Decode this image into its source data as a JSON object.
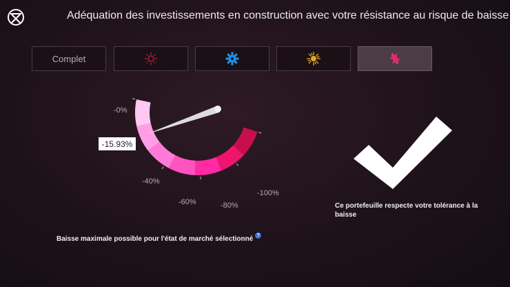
{
  "header": {
    "title": "Adéquation des investissements en construction avec votre résistance au risque de baisse",
    "close_icon": "close-circle-icon"
  },
  "tabs": [
    {
      "label": "Complet",
      "icon": null,
      "active": false
    },
    {
      "label": "",
      "icon": "sun-outline-icon",
      "color": "#b01f3a",
      "active": false
    },
    {
      "label": "",
      "icon": "gear-sun-icon",
      "color": "#1e8fe6",
      "active": false
    },
    {
      "label": "",
      "icon": "sun-burst-icon",
      "color": "#e8a81a",
      "active": false
    },
    {
      "label": "",
      "icon": "leaf-burst-icon",
      "color": "#e8286e",
      "active": true
    }
  ],
  "gauge": {
    "value_pct": -15.93,
    "value_label": "-15.93%",
    "ticks": [
      "-0%",
      "-40%",
      "-60%",
      "-80%",
      "-100%"
    ],
    "colors": [
      "#ffc8f2",
      "#ff9ee6",
      "#ff7ad8",
      "#ff53c0",
      "#ff2aa4",
      "#f0146f",
      "#c80f4c"
    ]
  },
  "result": {
    "icon": "checkmark-icon",
    "text": "Ce portefeuille respecte votre tolérance à la baisse"
  },
  "footnote": {
    "text": "Baisse maximale possible pour l'état de marché sélectionné",
    "help_icon": "help-icon"
  }
}
